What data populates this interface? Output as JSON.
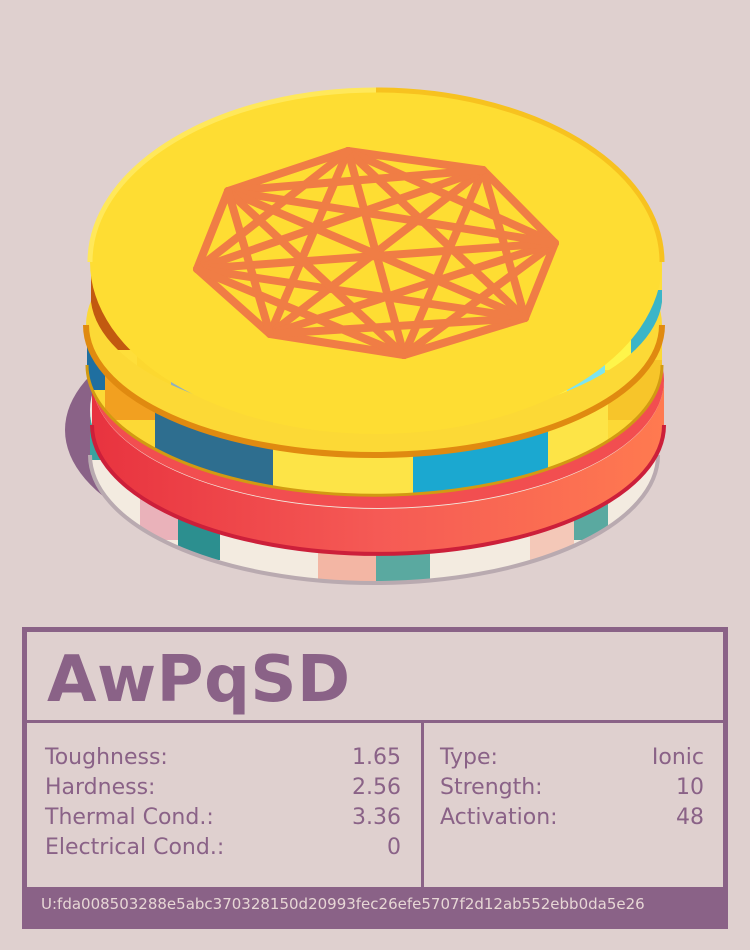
{
  "material": {
    "name": "AwPqSD",
    "stats_left": [
      {
        "label": "Toughness:",
        "value": "1.65"
      },
      {
        "label": "Hardness:",
        "value": "2.56"
      },
      {
        "label": "Thermal Cond.:",
        "value": "3.36"
      },
      {
        "label": "Electrical Cond.:",
        "value": "0"
      }
    ],
    "stats_right": [
      {
        "label": "Type:",
        "value": "Ionic"
      },
      {
        "label": "Strength:",
        "value": "10"
      },
      {
        "label": "Activation:",
        "value": "48"
      }
    ],
    "uid": "U:fda008503288e5abc370328150d20993fec26efe5707f2d12ab552ebb0da5e26"
  },
  "illustration": {
    "emblem_icon": "heptagon-complete-graph-icon",
    "colors": {
      "background": "#dfd0cf",
      "shadow": "#8a6287",
      "layer_bottom": "#f3ebe0",
      "layer_red": "#f24e50",
      "layer_yellow": "#fcd936",
      "layer_top": "#fedd33",
      "emblem": "#f07d45",
      "card": "#8a6287"
    }
  }
}
